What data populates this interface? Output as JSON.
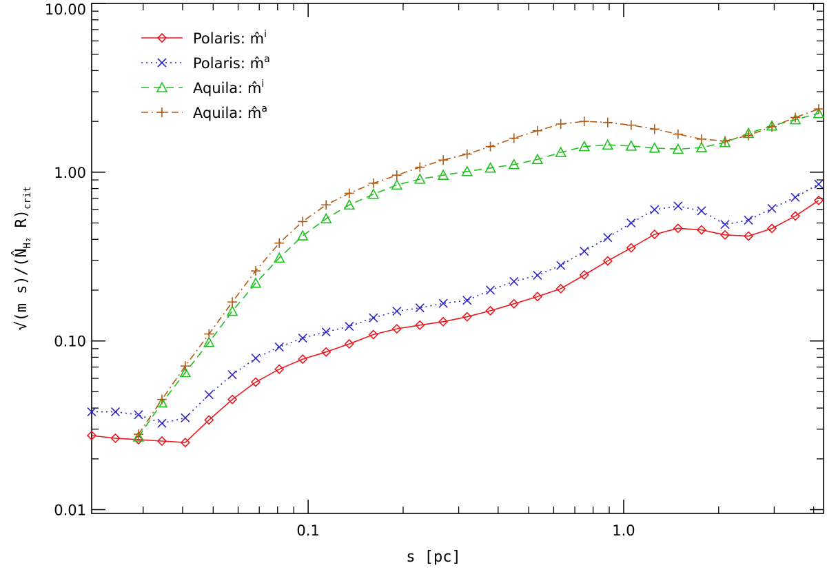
{
  "chart_data": {
    "type": "line",
    "title": "",
    "xlabel": "s [pc]",
    "ylabel": "√(m s)/(N̂",
    "ylabel_sub": "H₂",
    "ylabel_mid": " R)",
    "ylabel_sub2": "crit",
    "xscale": "log",
    "yscale": "log",
    "xlim": [
      0.0206,
      4.3
    ],
    "ylim": [
      0.0095,
      10.0
    ],
    "xticks": [
      {
        "value": 0.1,
        "label": "0.1"
      },
      {
        "value": 1.0,
        "label": "1.0"
      }
    ],
    "yticks": [
      {
        "value": 0.01,
        "label": "0.01"
      },
      {
        "value": 0.1,
        "label": "0.10"
      },
      {
        "value": 1.0,
        "label": "1.00"
      },
      {
        "value": 10.0,
        "label": "10.00"
      }
    ],
    "grid": false,
    "legend": "top-left",
    "x": [
      0.0206,
      0.0245,
      0.029,
      0.0344,
      0.0408,
      0.0485,
      0.0575,
      0.0682,
      0.081,
      0.0961,
      0.114,
      0.135,
      0.161,
      0.191,
      0.226,
      0.268,
      0.319,
      0.378,
      0.449,
      0.533,
      0.632,
      0.75,
      0.89,
      1.056,
      1.253,
      1.487,
      1.765,
      2.095,
      2.486,
      2.95,
      3.5,
      4.15
    ],
    "series": [
      {
        "name": "Polaris:",
        "legend_math": "m̂",
        "legend_sup": "i",
        "color": "#e8191f",
        "dash": "solid",
        "marker": "diamond",
        "values": [
          0.0275,
          0.0265,
          0.026,
          0.0255,
          0.025,
          0.034,
          0.045,
          0.057,
          0.068,
          0.078,
          0.086,
          0.096,
          0.109,
          0.118,
          0.124,
          0.13,
          0.139,
          0.151,
          0.166,
          0.183,
          0.204,
          0.246,
          0.298,
          0.356,
          0.428,
          0.465,
          0.455,
          0.425,
          0.418,
          0.464,
          0.55,
          0.68
        ]
      },
      {
        "name": "Polaris:",
        "legend_math": "m̂",
        "legend_sup": "a",
        "color": "#2b26c2",
        "dash": "dotted",
        "marker": "x",
        "values": [
          0.038,
          0.038,
          0.0365,
          0.0325,
          0.035,
          0.048,
          0.063,
          0.079,
          0.092,
          0.104,
          0.113,
          0.122,
          0.137,
          0.15,
          0.157,
          0.167,
          0.174,
          0.2,
          0.225,
          0.245,
          0.28,
          0.34,
          0.41,
          0.5,
          0.6,
          0.63,
          0.59,
          0.49,
          0.52,
          0.61,
          0.71,
          0.85
        ]
      },
      {
        "name": "Aquila:",
        "legend_math": "m̂",
        "legend_sup": "i",
        "color": "#1fbf1f",
        "dash": "dashed",
        "marker": "triangle",
        "values": [
          null,
          null,
          0.027,
          0.043,
          0.065,
          0.098,
          0.15,
          0.22,
          0.31,
          0.42,
          0.53,
          0.64,
          0.74,
          0.84,
          0.91,
          0.96,
          1.01,
          1.06,
          1.11,
          1.19,
          1.31,
          1.42,
          1.45,
          1.43,
          1.39,
          1.37,
          1.4,
          1.5,
          1.7,
          1.88,
          2.05,
          2.23
        ]
      },
      {
        "name": "Aquila:",
        "legend_math": "m̂",
        "legend_sup": "a",
        "color": "#b35a12",
        "dash": "dashdot",
        "marker": "plus",
        "values": [
          null,
          null,
          0.028,
          0.045,
          0.071,
          0.11,
          0.17,
          0.26,
          0.38,
          0.51,
          0.64,
          0.75,
          0.86,
          0.96,
          1.07,
          1.18,
          1.28,
          1.42,
          1.59,
          1.76,
          1.93,
          2.0,
          1.97,
          1.9,
          1.8,
          1.68,
          1.57,
          1.53,
          1.65,
          1.86,
          2.11,
          2.37
        ]
      }
    ]
  }
}
